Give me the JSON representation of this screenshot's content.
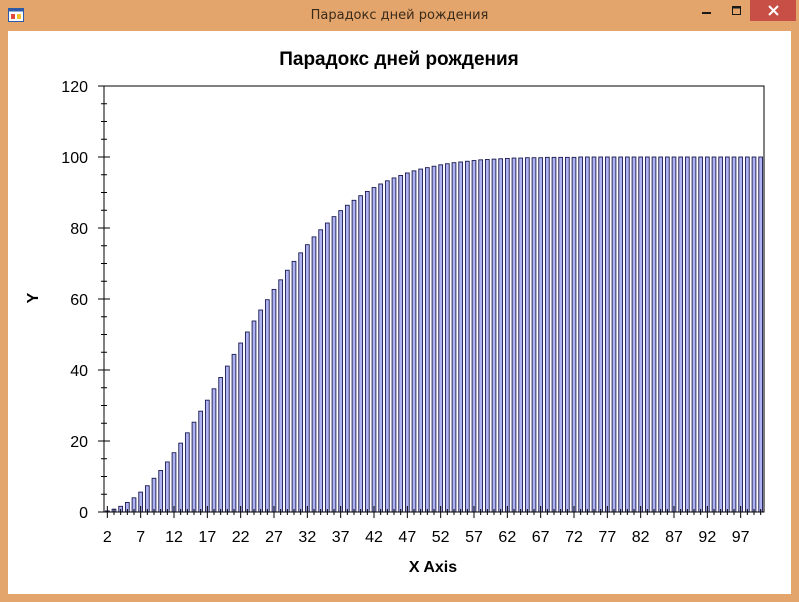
{
  "window": {
    "title": "Парадокс дней рождения",
    "controls": {
      "minimize_icon": "minimize-icon",
      "maximize_icon": "maximize-icon",
      "close_icon": "close-icon"
    },
    "colors": {
      "frame": "#e3a56c",
      "close": "#c74f46",
      "bar_fill": "#aeb2f0",
      "bar_outline": "#1a1a50"
    }
  },
  "chart_data": {
    "type": "bar",
    "title": "Парадокс дней рождения",
    "xlabel": "X Axis",
    "ylabel": "Y",
    "ylim": [
      0,
      120
    ],
    "yticks": [
      "0",
      "20",
      "40",
      "60",
      "80",
      "100",
      "120"
    ],
    "xticks": [
      "2",
      "7",
      "12",
      "17",
      "22",
      "27",
      "32",
      "37",
      "42",
      "47",
      "52",
      "57",
      "62",
      "67",
      "72",
      "77",
      "82",
      "87",
      "92",
      "97"
    ],
    "grid": false,
    "legend": "none",
    "x": [
      2,
      3,
      4,
      5,
      6,
      7,
      8,
      9,
      10,
      11,
      12,
      13,
      14,
      15,
      16,
      17,
      18,
      19,
      20,
      21,
      22,
      23,
      24,
      25,
      26,
      27,
      28,
      29,
      30,
      31,
      32,
      33,
      34,
      35,
      36,
      37,
      38,
      39,
      40,
      41,
      42,
      43,
      44,
      45,
      46,
      47,
      48,
      49,
      50,
      51,
      52,
      53,
      54,
      55,
      56,
      57,
      58,
      59,
      60,
      61,
      62,
      63,
      64,
      65,
      66,
      67,
      68,
      69,
      70,
      71,
      72,
      73,
      74,
      75,
      76,
      77,
      78,
      79,
      80,
      81,
      82,
      83,
      84,
      85,
      86,
      87,
      88,
      89,
      90,
      91,
      92,
      93,
      94,
      95,
      96,
      97,
      98,
      99,
      100
    ],
    "values": [
      0.3,
      0.8,
      1.6,
      2.7,
      4.0,
      5.6,
      7.4,
      9.5,
      11.7,
      14.1,
      16.7,
      19.4,
      22.3,
      25.3,
      28.4,
      31.5,
      34.7,
      37.9,
      41.1,
      44.4,
      47.6,
      50.7,
      53.8,
      56.9,
      59.8,
      62.7,
      65.4,
      68.1,
      70.6,
      73.0,
      75.3,
      77.5,
      79.5,
      81.4,
      83.2,
      84.9,
      86.4,
      87.8,
      89.1,
      90.3,
      91.4,
      92.4,
      93.3,
      94.1,
      94.8,
      95.5,
      96.1,
      96.6,
      97.0,
      97.4,
      97.8,
      98.1,
      98.4,
      98.6,
      98.8,
      99.0,
      99.2,
      99.3,
      99.4,
      99.5,
      99.6,
      99.7,
      99.7,
      99.8,
      99.8,
      99.8,
      99.9,
      99.9,
      99.9,
      99.9,
      99.9,
      100,
      100,
      100,
      100,
      100,
      100,
      100,
      100,
      100,
      100,
      100,
      100,
      100,
      100,
      100,
      100,
      100,
      100,
      100,
      100,
      100,
      100,
      100,
      100,
      100,
      100,
      100,
      100
    ]
  }
}
